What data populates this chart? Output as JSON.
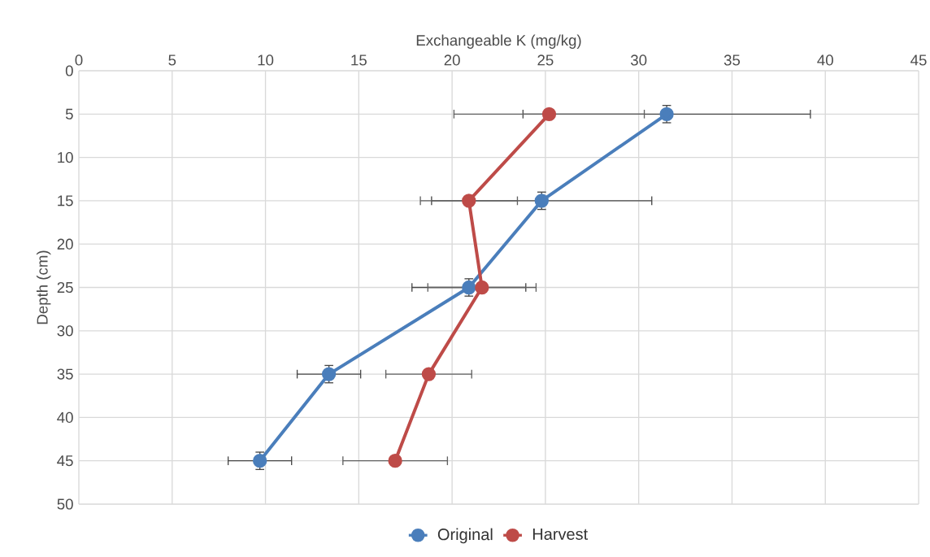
{
  "chart_data": {
    "type": "line",
    "xlabel": "Exchangeable K (mg/kg)",
    "ylabel": "Depth (cm)",
    "xlim": [
      0,
      45
    ],
    "xticks": [
      0,
      5,
      10,
      15,
      20,
      25,
      30,
      35,
      40,
      45
    ],
    "ylim": [
      50,
      0
    ],
    "yticks": [
      0,
      5,
      10,
      15,
      20,
      25,
      30,
      35,
      40,
      45,
      50
    ],
    "grid": true,
    "legend": "bottom",
    "marker": "circle",
    "line_style": "solid",
    "series": [
      {
        "name": "Original",
        "color": "#4a7ebb",
        "x": [
          31.5,
          24.8,
          20.9,
          13.4,
          9.7
        ],
        "values": [
          5,
          15,
          25,
          35,
          45
        ],
        "xerrors": [
          7.7,
          5.9,
          3.05,
          1.7,
          1.7
        ],
        "errors": [
          1,
          1,
          1,
          1,
          1
        ]
      },
      {
        "name": "Harvest",
        "color": "#be4b48",
        "x": [
          25.2,
          20.9,
          21.6,
          18.75,
          16.95
        ],
        "values": [
          5,
          15,
          25,
          35,
          45
        ],
        "xerrors": [
          5.1,
          2.6,
          2.9,
          2.3,
          2.8
        ]
      }
    ]
  }
}
